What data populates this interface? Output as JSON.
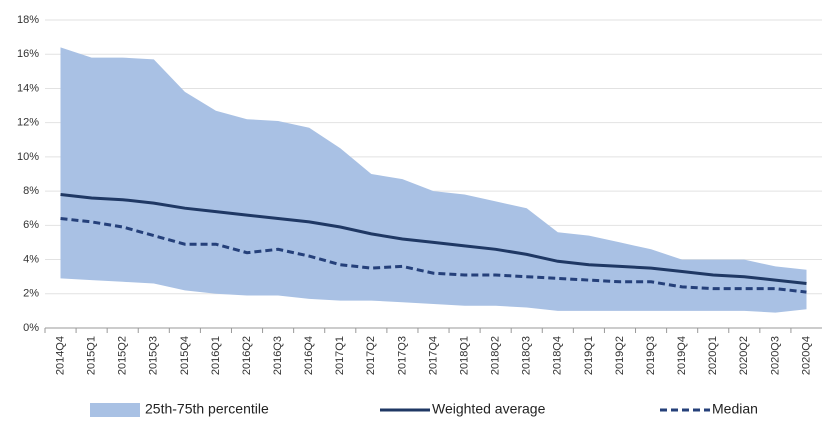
{
  "chart_data": {
    "type": "band-line",
    "categories": [
      "2014Q4",
      "2015Q1",
      "2015Q2",
      "2015Q3",
      "2015Q4",
      "2016Q1",
      "2016Q2",
      "2016Q3",
      "2016Q4",
      "2017Q1",
      "2017Q2",
      "2017Q3",
      "2017Q4",
      "2018Q1",
      "2018Q2",
      "2018Q3",
      "2018Q4",
      "2019Q1",
      "2019Q2",
      "2019Q3",
      "2019Q4",
      "2020Q1",
      "2020Q2",
      "2020Q3",
      "2020Q4"
    ],
    "band": {
      "name": "25th-75th percentile",
      "color": "#a9c1e4",
      "high": [
        16.4,
        15.8,
        15.8,
        15.7,
        13.8,
        12.7,
        12.2,
        12.1,
        11.7,
        10.5,
        9.0,
        8.7,
        8.0,
        7.8,
        7.4,
        7.0,
        5.6,
        5.4,
        5.0,
        4.6,
        4.0,
        4.0,
        4.0,
        3.6,
        3.4
      ],
      "low": [
        2.9,
        2.8,
        2.7,
        2.6,
        2.2,
        2.0,
        1.9,
        1.9,
        1.7,
        1.6,
        1.6,
        1.5,
        1.4,
        1.3,
        1.3,
        1.2,
        1.0,
        1.0,
        1.0,
        1.0,
        1.0,
        1.0,
        1.0,
        0.9,
        1.1
      ]
    },
    "series": [
      {
        "name": "Weighted average",
        "color": "#1f3864",
        "dash": false,
        "values": [
          7.8,
          7.6,
          7.5,
          7.3,
          7.0,
          6.8,
          6.6,
          6.4,
          6.2,
          5.9,
          5.5,
          5.2,
          5.0,
          4.8,
          4.6,
          4.3,
          3.9,
          3.7,
          3.6,
          3.5,
          3.3,
          3.1,
          3.0,
          2.8,
          2.6
        ]
      },
      {
        "name": "Median",
        "color": "#25407a",
        "dash": true,
        "values": [
          6.4,
          6.2,
          5.9,
          5.4,
          4.9,
          4.9,
          4.4,
          4.6,
          4.2,
          3.7,
          3.5,
          3.6,
          3.2,
          3.1,
          3.1,
          3.0,
          2.9,
          2.8,
          2.7,
          2.7,
          2.4,
          2.3,
          2.3,
          2.3,
          2.1
        ]
      }
    ],
    "ylim": [
      0,
      18
    ],
    "yticks": [
      {
        "value": 0,
        "label": "0%"
      },
      {
        "value": 2,
        "label": "2%"
      },
      {
        "value": 4,
        "label": "4%"
      },
      {
        "value": 6,
        "label": "6%"
      },
      {
        "value": 8,
        "label": "8%"
      },
      {
        "value": 10,
        "label": "10%"
      },
      {
        "value": 12,
        "label": "12%"
      },
      {
        "value": 14,
        "label": "14%"
      },
      {
        "value": 16,
        "label": "16%"
      },
      {
        "value": 18,
        "label": "18%"
      }
    ],
    "grid": true
  }
}
